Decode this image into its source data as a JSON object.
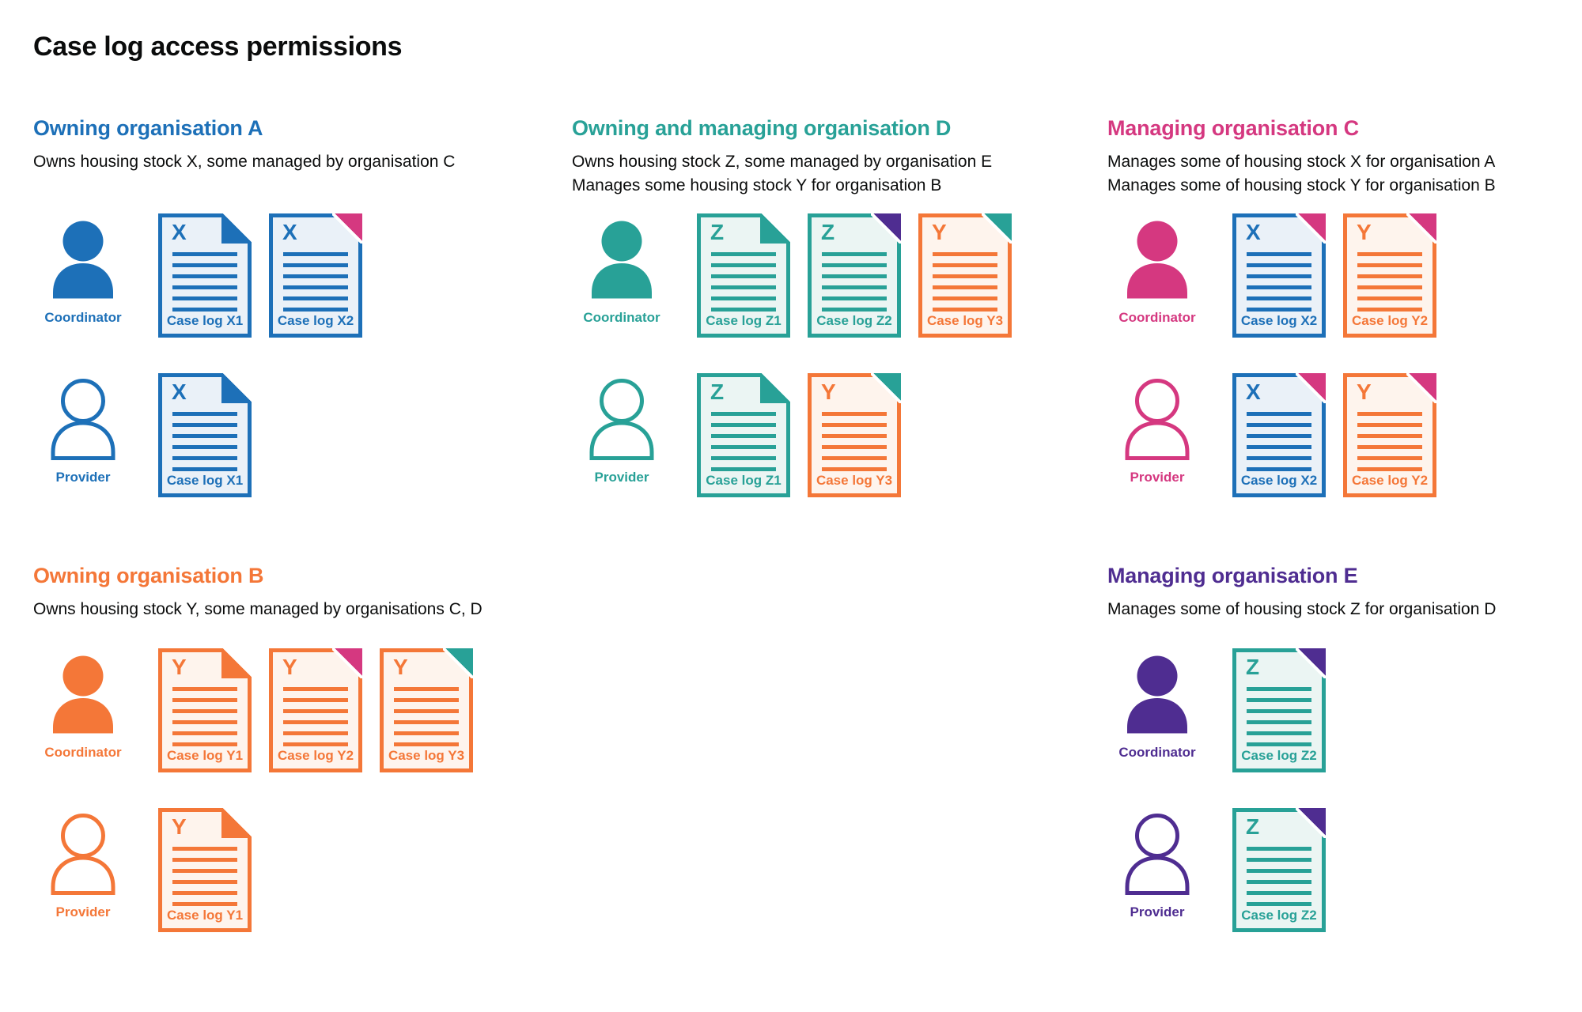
{
  "page": {
    "title": "Case log access permissions"
  },
  "colors": {
    "blue": "#1d70b8",
    "teal": "#28a197",
    "pink": "#d53880",
    "orange": "#f47738",
    "purple": "#4f2d91",
    "text": "#0b0c0c"
  },
  "tints": {
    "blue": "#eaf1f8",
    "teal": "#ebf5f3",
    "orange": "#fef4ed"
  },
  "icons": {
    "coordinator": "person-filled-icon",
    "provider": "person-outline-icon",
    "document": "case-log-document-icon",
    "fold": "page-corner-fold-icon"
  },
  "sections": [
    {
      "slot": "a",
      "org_color": "blue",
      "title": "Owning organisation A",
      "description": [
        "Owns housing stock X, some managed by organisation C"
      ],
      "rows": [
        {
          "role": "Coordinator",
          "person_style": "filled",
          "docs": [
            {
              "letter": "X",
              "doc_color": "blue",
              "fold_color": "blue",
              "fold_style": "cut",
              "label": "Case log X1"
            },
            {
              "letter": "X",
              "doc_color": "blue",
              "fold_color": "pink",
              "fold_style": "solid",
              "label": "Case log X2"
            }
          ]
        },
        {
          "role": "Provider",
          "person_style": "outline",
          "docs": [
            {
              "letter": "X",
              "doc_color": "blue",
              "fold_color": "blue",
              "fold_style": "cut",
              "label": "Case log X1"
            }
          ]
        }
      ]
    },
    {
      "slot": "d",
      "org_color": "teal",
      "title": "Owning and managing organisation D",
      "description": [
        "Owns housing stock Z, some managed by organisation E",
        "Manages some housing stock Y for organisation B"
      ],
      "rows": [
        {
          "role": "Coordinator",
          "person_style": "filled",
          "docs": [
            {
              "letter": "Z",
              "doc_color": "teal",
              "fold_color": "teal",
              "fold_style": "cut",
              "label": "Case log Z1"
            },
            {
              "letter": "Z",
              "doc_color": "teal",
              "fold_color": "purple",
              "fold_style": "solid",
              "label": "Case log Z2"
            },
            {
              "letter": "Y",
              "doc_color": "orange",
              "fold_color": "teal",
              "fold_style": "solid",
              "label": "Case log Y3"
            }
          ]
        },
        {
          "role": "Provider",
          "person_style": "outline",
          "docs": [
            {
              "letter": "Z",
              "doc_color": "teal",
              "fold_color": "teal",
              "fold_style": "cut",
              "label": "Case log Z1"
            },
            {
              "letter": "Y",
              "doc_color": "orange",
              "fold_color": "teal",
              "fold_style": "solid",
              "label": "Case log Y3"
            }
          ]
        }
      ]
    },
    {
      "slot": "c",
      "org_color": "pink",
      "title": "Managing organisation C",
      "description": [
        "Manages some of housing stock X for organisation A",
        "Manages some of housing stock Y for organisation B"
      ],
      "rows": [
        {
          "role": "Coordinator",
          "person_style": "filled",
          "docs": [
            {
              "letter": "X",
              "doc_color": "blue",
              "fold_color": "pink",
              "fold_style": "solid",
              "label": "Case log X2"
            },
            {
              "letter": "Y",
              "doc_color": "orange",
              "fold_color": "pink",
              "fold_style": "solid",
              "label": "Case log Y2"
            }
          ]
        },
        {
          "role": "Provider",
          "person_style": "outline",
          "docs": [
            {
              "letter": "X",
              "doc_color": "blue",
              "fold_color": "pink",
              "fold_style": "solid",
              "label": "Case log X2"
            },
            {
              "letter": "Y",
              "doc_color": "orange",
              "fold_color": "pink",
              "fold_style": "solid",
              "label": "Case log Y2"
            }
          ]
        }
      ]
    },
    {
      "slot": "b",
      "org_color": "orange",
      "title": "Owning organisation B",
      "description": [
        "Owns housing stock Y, some managed by organisations C, D"
      ],
      "rows": [
        {
          "role": "Coordinator",
          "person_style": "filled",
          "docs": [
            {
              "letter": "Y",
              "doc_color": "orange",
              "fold_color": "orange",
              "fold_style": "cut",
              "label": "Case log Y1"
            },
            {
              "letter": "Y",
              "doc_color": "orange",
              "fold_color": "pink",
              "fold_style": "solid",
              "label": "Case log Y2"
            },
            {
              "letter": "Y",
              "doc_color": "orange",
              "fold_color": "teal",
              "fold_style": "solid",
              "label": "Case log Y3"
            }
          ]
        },
        {
          "role": "Provider",
          "person_style": "outline",
          "docs": [
            {
              "letter": "Y",
              "doc_color": "orange",
              "fold_color": "orange",
              "fold_style": "cut",
              "label": "Case log Y1"
            }
          ]
        }
      ]
    },
    {
      "slot": "e",
      "org_color": "purple",
      "title": "Managing organisation E",
      "description": [
        "Manages some of housing stock Z for organisation D"
      ],
      "rows": [
        {
          "role": "Coordinator",
          "person_style": "filled",
          "docs": [
            {
              "letter": "Z",
              "doc_color": "teal",
              "fold_color": "purple",
              "fold_style": "solid",
              "label": "Case log Z2"
            }
          ]
        },
        {
          "role": "Provider",
          "person_style": "outline",
          "docs": [
            {
              "letter": "Z",
              "doc_color": "teal",
              "fold_color": "purple",
              "fold_style": "solid",
              "label": "Case log Z2"
            }
          ]
        }
      ]
    }
  ]
}
